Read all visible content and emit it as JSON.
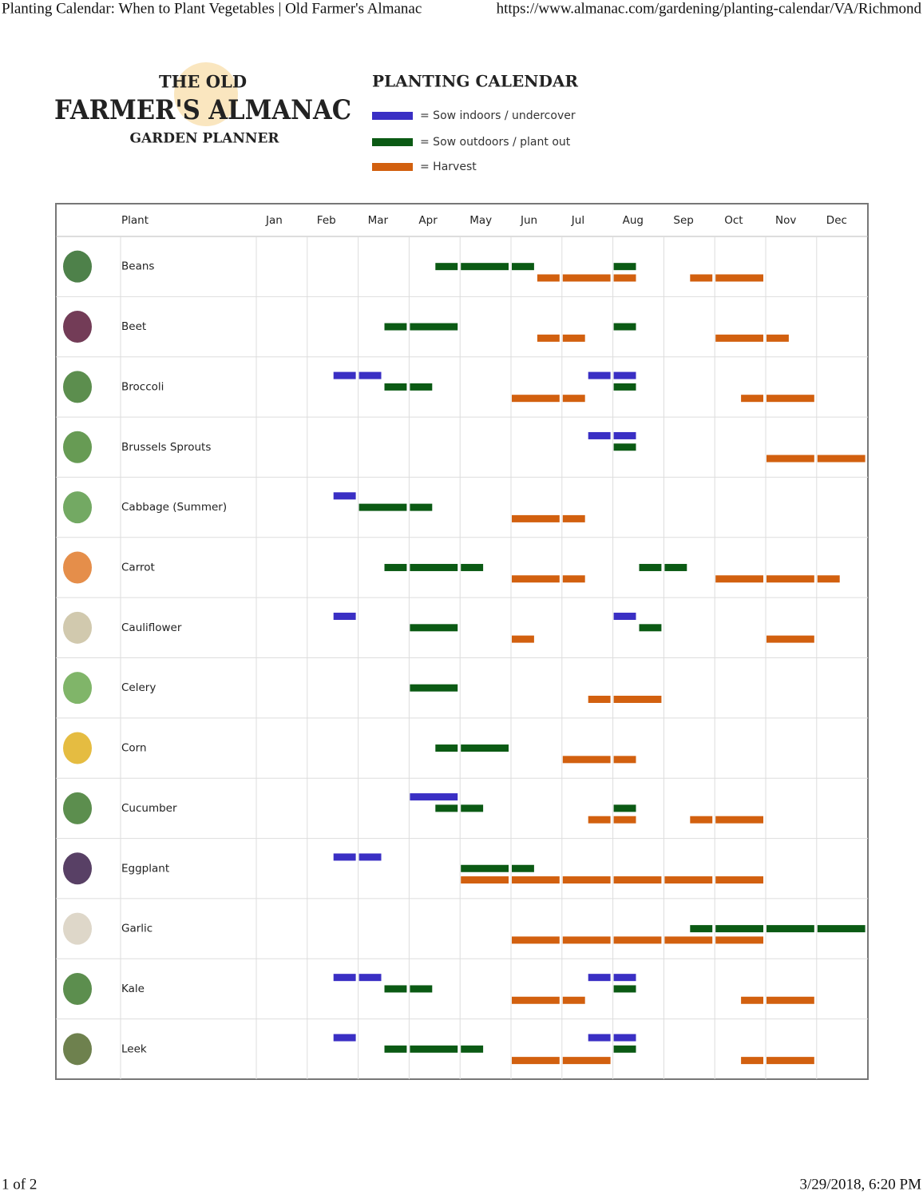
{
  "browser": {
    "page_title": "Planting Calendar: When to Plant Vegetables | Old Farmer's Almanac",
    "url": "https://www.almanac.com/gardening/planting-calendar/VA/Richmond"
  },
  "logo": {
    "line1": "THE OLD",
    "line2": "FARMER'S ALMANAC",
    "line3": "GARDEN PLANNER"
  },
  "legend": {
    "title": "PLANTING CALENDAR",
    "items": [
      {
        "label": "= Sow indoors / undercover",
        "color": "#3a2fc4"
      },
      {
        "label": "= Sow outdoors / plant out",
        "color": "#0b5a14"
      },
      {
        "label": "= Harvest",
        "color": "#d2600f"
      }
    ]
  },
  "table": {
    "plant_header": "Plant",
    "months": [
      "Jan",
      "Feb",
      "Mar",
      "Apr",
      "May",
      "Jun",
      "Jul",
      "Aug",
      "Sep",
      "Oct",
      "Nov",
      "Dec"
    ],
    "rows": [
      {
        "plant": "Beans",
        "periods": [
          [],
          [
            [
              3.5,
              5.5
            ],
            [
              7,
              7.5
            ]
          ],
          [
            [
              5.5,
              7.5
            ],
            [
              8.5,
              10
            ]
          ]
        ]
      },
      {
        "plant": "Beet",
        "periods": [
          [],
          [
            [
              2.5,
              4
            ],
            [
              7,
              7.5
            ]
          ],
          [
            [
              5.5,
              6.5
            ],
            [
              9,
              10.5
            ]
          ]
        ]
      },
      {
        "plant": "Broccoli",
        "periods": [
          [
            [
              1.5,
              2.5
            ],
            [
              6.5,
              7.5
            ]
          ],
          [
            [
              2.5,
              3.5
            ],
            [
              7,
              7.5
            ]
          ],
          [
            [
              5,
              6.5
            ],
            [
              9.5,
              11
            ]
          ]
        ]
      },
      {
        "plant": "Brussels Sprouts",
        "periods": [
          [
            [
              6.5,
              7.5
            ]
          ],
          [
            [
              7,
              7.5
            ]
          ],
          [
            [
              10,
              12
            ]
          ]
        ]
      },
      {
        "plant": "Cabbage (Summer)",
        "periods": [
          [
            [
              1.5,
              2
            ]
          ],
          [
            [
              2,
              3.5
            ]
          ],
          [
            [
              5,
              6.5
            ]
          ]
        ]
      },
      {
        "plant": "Carrot",
        "periods": [
          [],
          [
            [
              2.5,
              4.5
            ],
            [
              7.5,
              8.5
            ]
          ],
          [
            [
              5,
              6.5
            ],
            [
              9,
              11.5
            ]
          ]
        ]
      },
      {
        "plant": "Cauliflower",
        "periods": [
          [
            [
              1.5,
              2
            ],
            [
              7,
              7.5
            ]
          ],
          [
            [
              3,
              4
            ],
            [
              7.5,
              8
            ]
          ],
          [
            [
              5,
              5.5
            ],
            [
              10,
              11
            ]
          ]
        ]
      },
      {
        "plant": "Celery",
        "periods": [
          [],
          [
            [
              3,
              4
            ]
          ],
          [
            [
              6.5,
              8
            ]
          ]
        ]
      },
      {
        "plant": "Corn",
        "periods": [
          [],
          [
            [
              3.5,
              5
            ]
          ],
          [
            [
              6,
              7.5
            ]
          ]
        ]
      },
      {
        "plant": "Cucumber",
        "periods": [
          [
            [
              3,
              4
            ]
          ],
          [
            [
              3.5,
              4.5
            ],
            [
              7,
              7.5
            ]
          ],
          [
            [
              6.5,
              7.5
            ],
            [
              8.5,
              10
            ]
          ]
        ]
      },
      {
        "plant": "Eggplant",
        "periods": [
          [
            [
              1.5,
              2.5
            ]
          ],
          [
            [
              4,
              5.5
            ]
          ],
          [
            [
              4,
              10
            ]
          ]
        ]
      },
      {
        "plant": "Garlic",
        "periods": [
          [],
          [
            [
              8.5,
              12
            ]
          ],
          [
            [
              5,
              10
            ]
          ]
        ]
      },
      {
        "plant": "Kale",
        "periods": [
          [
            [
              1.5,
              2.5
            ],
            [
              6.5,
              7.5
            ]
          ],
          [
            [
              2.5,
              3.5
            ],
            [
              7,
              7.5
            ]
          ],
          [
            [
              5,
              6.5
            ],
            [
              9.5,
              11
            ]
          ]
        ]
      },
      {
        "plant": "Leek",
        "periods": [
          [
            [
              1.5,
              2
            ],
            [
              6.5,
              7.5
            ]
          ],
          [
            [
              2.5,
              4.5
            ],
            [
              7,
              7.5
            ]
          ],
          [
            [
              5,
              7
            ],
            [
              9.5,
              11
            ]
          ]
        ]
      }
    ]
  },
  "footer": {
    "page": "1 of 2",
    "timestamp": "3/29/2018, 6:20 PM"
  }
}
